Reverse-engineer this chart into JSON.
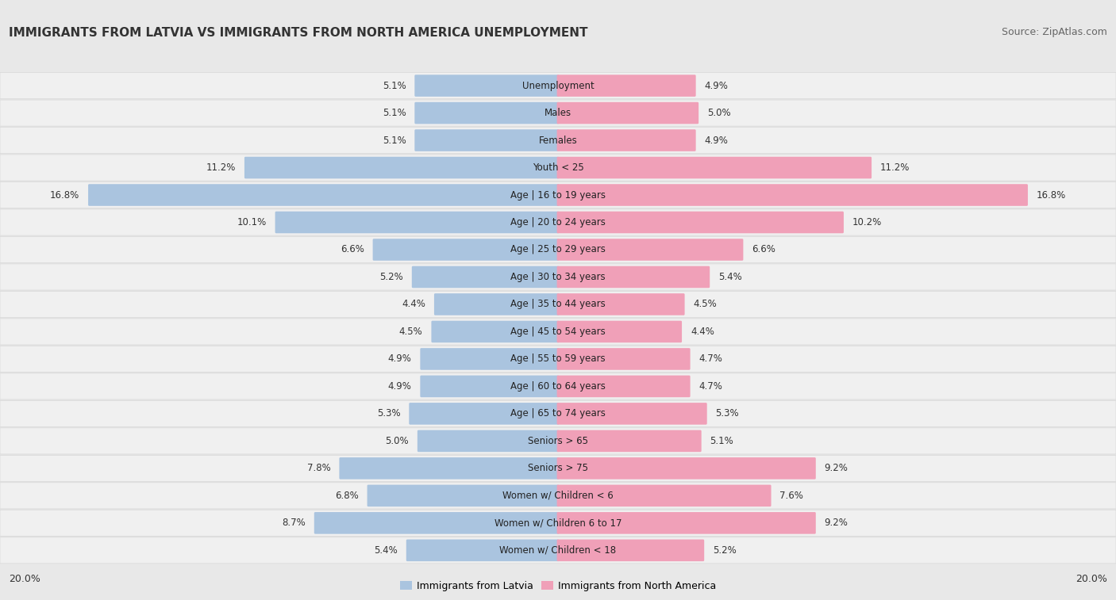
{
  "title": "IMMIGRANTS FROM LATVIA VS IMMIGRANTS FROM NORTH AMERICA UNEMPLOYMENT",
  "source": "Source: ZipAtlas.com",
  "categories": [
    "Unemployment",
    "Males",
    "Females",
    "Youth < 25",
    "Age | 16 to 19 years",
    "Age | 20 to 24 years",
    "Age | 25 to 29 years",
    "Age | 30 to 34 years",
    "Age | 35 to 44 years",
    "Age | 45 to 54 years",
    "Age | 55 to 59 years",
    "Age | 60 to 64 years",
    "Age | 65 to 74 years",
    "Seniors > 65",
    "Seniors > 75",
    "Women w/ Children < 6",
    "Women w/ Children 6 to 17",
    "Women w/ Children < 18"
  ],
  "latvia_values": [
    5.1,
    5.1,
    5.1,
    11.2,
    16.8,
    10.1,
    6.6,
    5.2,
    4.4,
    4.5,
    4.9,
    4.9,
    5.3,
    5.0,
    7.8,
    6.8,
    8.7,
    5.4
  ],
  "north_america_values": [
    4.9,
    5.0,
    4.9,
    11.2,
    16.8,
    10.2,
    6.6,
    5.4,
    4.5,
    4.4,
    4.7,
    4.7,
    5.3,
    5.1,
    9.2,
    7.6,
    9.2,
    5.2
  ],
  "latvia_color": "#aac4df",
  "north_america_color": "#f0a0b8",
  "row_bg_light": "#ebebeb",
  "row_bg_white": "#f8f8f8",
  "fig_bg_color": "#e8e8e8",
  "axis_max": 20.0,
  "legend_latvia": "Immigrants from Latvia",
  "legend_north_america": "Immigrants from North America",
  "title_fontsize": 11,
  "source_fontsize": 9,
  "label_fontsize": 8.5,
  "value_fontsize": 8.5
}
